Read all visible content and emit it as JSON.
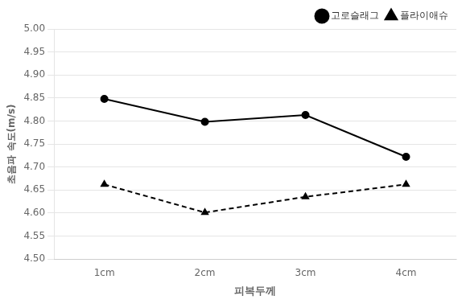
{
  "chart_data": {
    "type": "line",
    "categories": [
      "1cm",
      "2cm",
      "3cm",
      "4cm"
    ],
    "series": [
      {
        "name": "고로슬래그",
        "color": "#000000",
        "marker": "circle",
        "line_style": "solid",
        "values": [
          4.848,
          4.798,
          4.813,
          4.722
        ]
      },
      {
        "name": "플라이애슈",
        "color": "#000000",
        "marker": "triangle",
        "line_style": "dashed",
        "values": [
          4.662,
          4.601,
          4.635,
          4.662
        ]
      }
    ],
    "x_label": "피복두께",
    "y_label": "초음파 속도(m/s)",
    "ylim": [
      4.5,
      5.0
    ],
    "yticks": [
      {
        "value": 4.5,
        "label": "4.50"
      },
      4.55,
      {
        "value": 4.6,
        "label": "4.60"
      },
      4.65,
      {
        "value": 4.7,
        "label": "4.70"
      },
      4.75,
      {
        "value": 4.8,
        "label": "4.80"
      },
      4.85,
      {
        "value": 4.9,
        "label": "4.90"
      },
      4.95,
      {
        "value": 5.0,
        "label": "5.00"
      }
    ],
    "grid": true,
    "legend": "upper right"
  }
}
